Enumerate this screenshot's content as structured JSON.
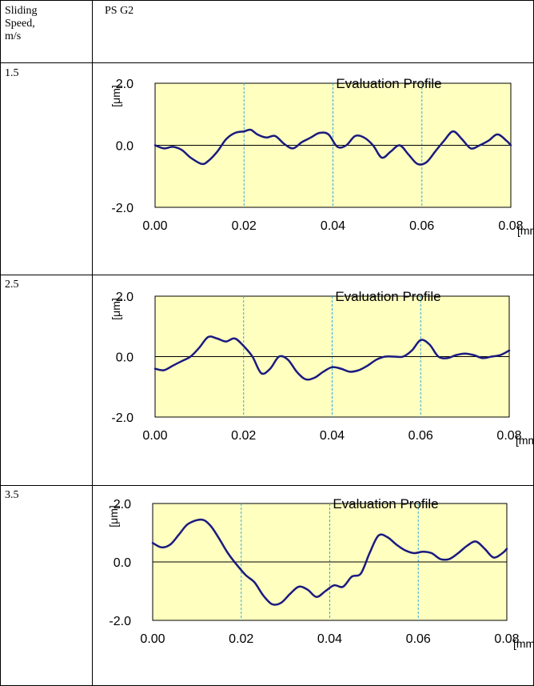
{
  "table": {
    "header_col1": "Sliding Speed, m/s",
    "header_col1_lines": [
      "Sliding",
      "Speed,",
      "m/s"
    ],
    "header_col2": "PS G2",
    "rows": [
      {
        "speed": "1.5"
      },
      {
        "speed": "2.5"
      },
      {
        "speed": "3.5"
      }
    ]
  },
  "colors": {
    "plot_bg": "#ffffc0",
    "line": "#1a1a80",
    "gridline": "#33aadd",
    "border": "#000000"
  },
  "chart_data": [
    {
      "type": "line",
      "title": "Evaluation Profile",
      "ylabel": "[μm]",
      "xunit": "[mm]",
      "x_ticks": [
        "0.00",
        "0.02",
        "0.04",
        "0.06",
        "0.08"
      ],
      "y_ticks": [
        "2.0",
        "0.0",
        "-2.0"
      ],
      "xlim": [
        0,
        0.08
      ],
      "ylim": [
        -2.0,
        2.0
      ],
      "grid": "vertical dashed at 0.02, 0.04, 0.06",
      "x": [
        0,
        0.002,
        0.004,
        0.006,
        0.008,
        0.0105,
        0.012,
        0.014,
        0.016,
        0.018,
        0.02,
        0.0215,
        0.023,
        0.025,
        0.027,
        0.029,
        0.031,
        0.033,
        0.035,
        0.037,
        0.039,
        0.041,
        0.043,
        0.045,
        0.047,
        0.049,
        0.051,
        0.053,
        0.055,
        0.057,
        0.059,
        0.061,
        0.063,
        0.065,
        0.067,
        0.069,
        0.071,
        0.073,
        0.075,
        0.077,
        0.079,
        0.08
      ],
      "y": [
        0.0,
        -0.1,
        -0.05,
        -0.15,
        -0.4,
        -0.6,
        -0.5,
        -0.2,
        0.2,
        0.4,
        0.45,
        0.5,
        0.35,
        0.25,
        0.3,
        0.05,
        -0.1,
        0.1,
        0.25,
        0.4,
        0.35,
        -0.05,
        0.0,
        0.3,
        0.25,
        0.0,
        -0.4,
        -0.2,
        0.0,
        -0.3,
        -0.6,
        -0.55,
        -0.2,
        0.15,
        0.45,
        0.2,
        -0.1,
        0.0,
        0.15,
        0.35,
        0.15,
        0.0
      ]
    },
    {
      "type": "line",
      "title": "Evaluation Profile",
      "ylabel": "[μm]",
      "xunit": "[mm]",
      "x_ticks": [
        "0.00",
        "0.02",
        "0.04",
        "0.06",
        "0.08"
      ],
      "y_ticks": [
        "2.0",
        "0.0",
        "-2.0"
      ],
      "xlim": [
        0,
        0.08
      ],
      "ylim": [
        -2.0,
        2.0
      ],
      "grid": "vertical dashed at 0.02, 0.04, 0.06",
      "x": [
        0,
        0.002,
        0.004,
        0.006,
        0.008,
        0.01,
        0.012,
        0.014,
        0.016,
        0.018,
        0.02,
        0.022,
        0.024,
        0.026,
        0.028,
        0.03,
        0.032,
        0.034,
        0.036,
        0.038,
        0.04,
        0.042,
        0.044,
        0.046,
        0.048,
        0.05,
        0.052,
        0.054,
        0.056,
        0.058,
        0.06,
        0.062,
        0.064,
        0.066,
        0.068,
        0.07,
        0.072,
        0.074,
        0.076,
        0.078,
        0.08
      ],
      "y": [
        -0.4,
        -0.45,
        -0.3,
        -0.15,
        0.0,
        0.3,
        0.65,
        0.6,
        0.5,
        0.6,
        0.35,
        0.0,
        -0.55,
        -0.4,
        0.0,
        -0.1,
        -0.5,
        -0.75,
        -0.7,
        -0.5,
        -0.35,
        -0.4,
        -0.5,
        -0.45,
        -0.3,
        -0.1,
        0.0,
        0.0,
        0.0,
        0.2,
        0.55,
        0.4,
        0.0,
        -0.05,
        0.05,
        0.1,
        0.05,
        -0.05,
        0.0,
        0.05,
        0.2
      ]
    },
    {
      "type": "line",
      "title": "Evaluation Profile",
      "ylabel": "[μm]",
      "xunit": "[mm]",
      "x_ticks": [
        "0.00",
        "0.02",
        "0.04",
        "0.06",
        "0.08"
      ],
      "y_ticks": [
        "2.0",
        "0.0",
        "-2.0"
      ],
      "xlim": [
        0,
        0.08
      ],
      "ylim": [
        -2.0,
        2.0
      ],
      "grid": "vertical dashed at 0.02, 0.04, 0.06",
      "x": [
        0,
        0.002,
        0.004,
        0.006,
        0.008,
        0.011,
        0.013,
        0.015,
        0.017,
        0.019,
        0.021,
        0.023,
        0.025,
        0.027,
        0.029,
        0.031,
        0.033,
        0.035,
        0.037,
        0.039,
        0.041,
        0.043,
        0.045,
        0.047,
        0.049,
        0.051,
        0.053,
        0.055,
        0.057,
        0.059,
        0.061,
        0.063,
        0.065,
        0.067,
        0.069,
        0.071,
        0.073,
        0.075,
        0.077,
        0.079,
        0.08
      ],
      "y": [
        0.65,
        0.5,
        0.6,
        0.95,
        1.3,
        1.45,
        1.25,
        0.8,
        0.3,
        -0.1,
        -0.45,
        -0.7,
        -1.15,
        -1.45,
        -1.4,
        -1.1,
        -0.85,
        -0.95,
        -1.2,
        -1.0,
        -0.8,
        -0.85,
        -0.5,
        -0.4,
        0.3,
        0.9,
        0.85,
        0.6,
        0.4,
        0.3,
        0.35,
        0.3,
        0.1,
        0.1,
        0.3,
        0.55,
        0.7,
        0.45,
        0.15,
        0.3,
        0.45
      ]
    }
  ]
}
